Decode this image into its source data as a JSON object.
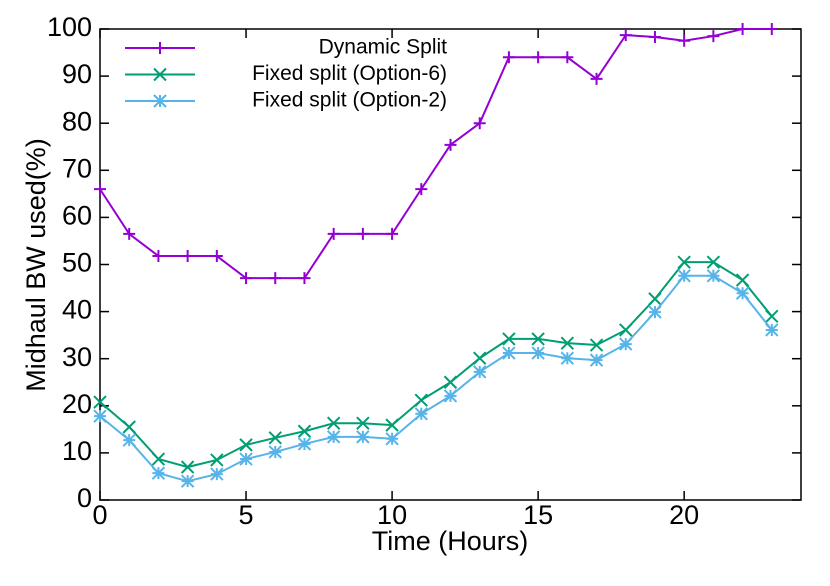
{
  "chart_data": {
    "type": "line",
    "x_label": "Time (Hours)",
    "y_label": "Midhaul BW used(%)",
    "x": [
      0,
      1,
      2,
      3,
      4,
      5,
      6,
      7,
      8,
      9,
      10,
      11,
      12,
      13,
      14,
      15,
      16,
      17,
      18,
      19,
      20,
      21,
      22,
      23
    ],
    "series": [
      {
        "name": "Dynamic Split",
        "color": "#9400d3",
        "marker": "plus",
        "values": [
          66,
          56.5,
          51.8,
          51.8,
          51.8,
          47.1,
          47.1,
          47.1,
          56.5,
          56.5,
          56.5,
          66,
          75.4,
          80,
          94,
          94,
          94,
          89.4,
          98.7,
          98.3,
          97.5,
          98.5,
          100,
          100
        ]
      },
      {
        "name": "Fixed split (Option-6)",
        "color": "#009e73",
        "marker": "cross",
        "values": [
          20.8,
          15.5,
          8.7,
          7,
          8.5,
          11.7,
          13.2,
          14.6,
          16.3,
          16.3,
          15.9,
          21.2,
          25,
          30.1,
          34.2,
          34.2,
          33.3,
          32.9,
          36.1,
          42.7,
          50.5,
          50.5,
          46.7,
          39
        ]
      },
      {
        "name": "Fixed split (Option-2)",
        "color": "#56b4e9",
        "marker": "star",
        "values": [
          17.8,
          12.7,
          5.7,
          4,
          5.5,
          8.7,
          10.2,
          11.9,
          13.4,
          13.4,
          13,
          18.3,
          22.1,
          27.2,
          31.2,
          31.2,
          30.1,
          29.7,
          33.1,
          39.9,
          47.6,
          47.6,
          43.9,
          36.1
        ]
      }
    ],
    "xlim": [
      0,
      24
    ],
    "xticks": [
      0,
      5,
      10,
      15,
      20
    ],
    "ylim": [
      0,
      100
    ],
    "yticks": [
      0,
      10,
      20,
      30,
      40,
      50,
      60,
      70,
      80,
      90,
      100
    ],
    "legend": "top-left"
  }
}
